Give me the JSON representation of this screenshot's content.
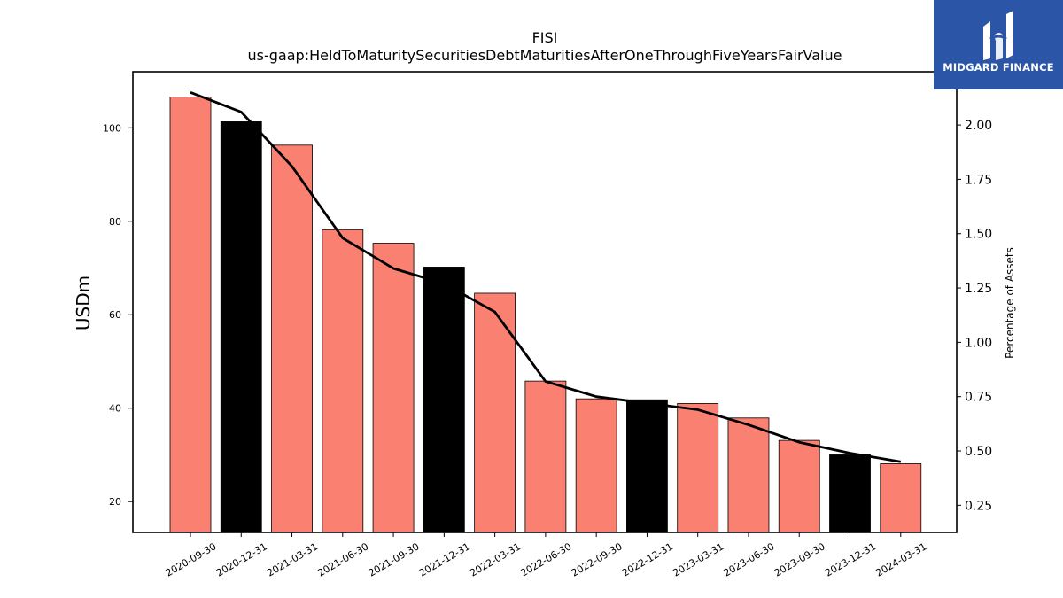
{
  "brand": {
    "name": "MIDGARD FINANCE",
    "color": "#2b55a6",
    "icon": "midgard-logo-mark"
  },
  "chart_data": {
    "type": "bar",
    "title": "FISI",
    "subtitle": "us-gaap:HeldToMaturitySecuritiesDebtMaturitiesAfterOneThroughFiveYearsFairValue",
    "ylabel": "USDm",
    "y2label": "Percentage of Assets",
    "categories": [
      "2020-09-30",
      "2020-12-31",
      "2021-03-31",
      "2021-06-30",
      "2021-09-30",
      "2021-12-31",
      "2022-03-31",
      "2022-06-30",
      "2022-09-30",
      "2022-12-31",
      "2023-03-31",
      "2023-06-30",
      "2023-09-30",
      "2023-12-31",
      "2024-03-31"
    ],
    "values": [
      106.6,
      101.3,
      96.3,
      78.2,
      75.3,
      70.2,
      64.6,
      45.8,
      42.0,
      41.8,
      41.0,
      37.9,
      33.1,
      30.0,
      28.1
    ],
    "bar_colors": [
      "#fa8072",
      "#000000",
      "#fa8072",
      "#fa8072",
      "#fa8072",
      "#000000",
      "#fa8072",
      "#fa8072",
      "#fa8072",
      "#000000",
      "#fa8072",
      "#fa8072",
      "#fa8072",
      "#000000",
      "#fa8072"
    ],
    "line_series": {
      "axis": "right",
      "color": "#000000",
      "values": [
        2.15,
        2.06,
        1.81,
        1.48,
        1.34,
        1.27,
        1.14,
        0.82,
        0.75,
        0.72,
        0.69,
        0.62,
        0.54,
        0.49,
        0.45
      ]
    },
    "ylim": [
      13.4,
      112.0
    ],
    "y2lim": [
      0.125,
      2.245
    ],
    "yticks": [
      "20",
      "40",
      "60",
      "80",
      "100"
    ],
    "y2ticks": [
      "0.25",
      "0.50",
      "0.75",
      "1.00",
      "1.25",
      "1.50",
      "1.75",
      "2.00"
    ],
    "grid": false,
    "legend": "none"
  }
}
